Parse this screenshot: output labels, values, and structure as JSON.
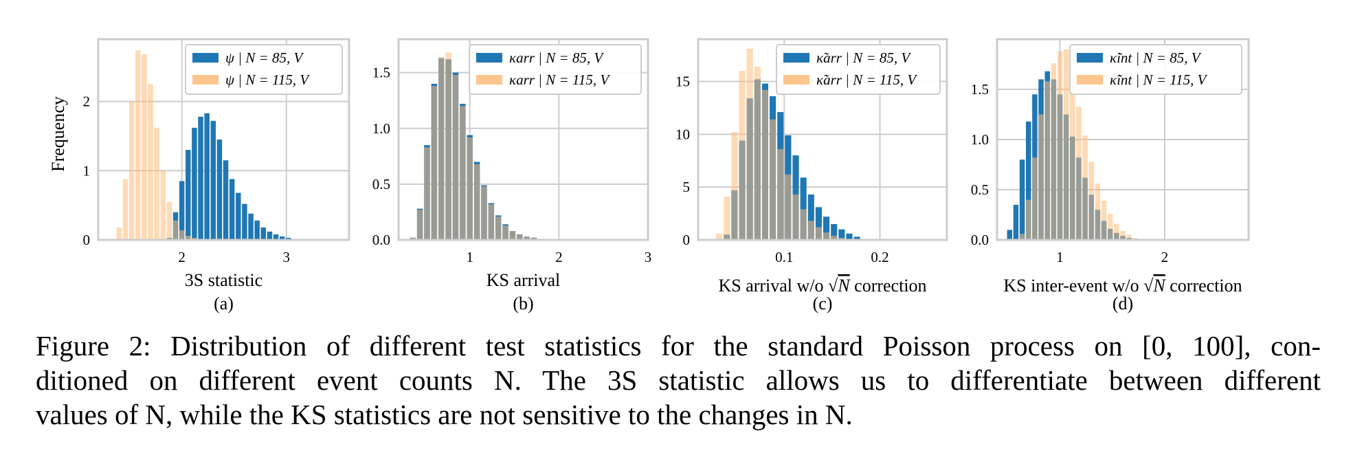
{
  "caption": {
    "lines": [
      "Figure 2: Distribution of different test statistics for the standard Poisson process on [0, 100], con-",
      "ditioned on different event counts N. The 3S statistic allows us to differentiate between different",
      "values of N, while the KS statistics are not sensitive to the changes in N."
    ]
  },
  "colors": {
    "series_a": "#1f77b4",
    "series_b": "#ffbb78",
    "overlap": "#8c6d4f",
    "grid": "#cccccc",
    "frame": "#cccccc"
  },
  "chart_data": [
    {
      "type": "bar",
      "subplot_label": "(a)",
      "xlabel": "3S statistic",
      "ylabel": "Frequency",
      "xlim": [
        1.2,
        3.6
      ],
      "ylim": [
        0,
        2.9
      ],
      "xticks": [
        2,
        3
      ],
      "xtick_labels": [
        "2",
        "3"
      ],
      "yticks": [
        0,
        1,
        2
      ],
      "ytick_labels": [
        "0",
        "1",
        "2"
      ],
      "bin_width": 0.06,
      "legend": [
        "ψ | N = 85, V",
        "ψ | N = 115, V"
      ],
      "series": [
        {
          "name": "ψ | N = 85, V",
          "x": [
            1.88,
            1.94,
            2.0,
            2.06,
            2.12,
            2.18,
            2.24,
            2.3,
            2.36,
            2.42,
            2.48,
            2.54,
            2.6,
            2.66,
            2.72,
            2.78,
            2.84,
            2.9,
            2.96,
            3.02
          ],
          "values": [
            0.03,
            0.4,
            0.85,
            1.3,
            1.62,
            1.78,
            1.83,
            1.72,
            1.45,
            1.15,
            0.88,
            0.68,
            0.52,
            0.38,
            0.28,
            0.18,
            0.12,
            0.08,
            0.05,
            0.03
          ]
        },
        {
          "name": "ψ | N = 115, V",
          "x": [
            1.4,
            1.46,
            1.52,
            1.58,
            1.64,
            1.7,
            1.76,
            1.82,
            1.88,
            1.94,
            2.0,
            2.06,
            2.12
          ],
          "values": [
            0.18,
            0.88,
            2.0,
            2.74,
            2.68,
            2.25,
            1.62,
            1.0,
            0.55,
            0.28,
            0.14,
            0.06,
            0.03
          ]
        }
      ]
    },
    {
      "type": "bar",
      "subplot_label": "(b)",
      "xlabel": "KS arrival",
      "ylabel": "",
      "xlim": [
        0.2,
        3.0
      ],
      "ylim": [
        0,
        1.8
      ],
      "xticks": [
        1,
        2,
        3
      ],
      "xtick_labels": [
        "1",
        "2",
        "3"
      ],
      "yticks": [
        0,
        0.5,
        1.0,
        1.5
      ],
      "ytick_labels": [
        "0.0",
        "0.5",
        "1.0",
        "1.5"
      ],
      "bin_width": 0.08,
      "legend": [
        "κarr | N = 85, V",
        "κarr | N = 115, V"
      ],
      "series": [
        {
          "name": "κarr | N = 85, V",
          "x": [
            0.36,
            0.44,
            0.52,
            0.6,
            0.68,
            0.76,
            0.84,
            0.92,
            1.0,
            1.08,
            1.16,
            1.24,
            1.32,
            1.4,
            1.48,
            1.56,
            1.64,
            1.72
          ],
          "values": [
            0.02,
            0.28,
            0.85,
            1.4,
            1.63,
            1.62,
            1.5,
            1.22,
            0.94,
            0.7,
            0.49,
            0.33,
            0.22,
            0.14,
            0.08,
            0.05,
            0.03,
            0.02
          ]
        },
        {
          "name": "κarr | N = 115, V",
          "x": [
            0.36,
            0.44,
            0.52,
            0.6,
            0.68,
            0.76,
            0.84,
            0.92,
            1.0,
            1.08,
            1.16,
            1.24,
            1.32,
            1.4,
            1.48,
            1.56,
            1.64,
            1.72
          ],
          "values": [
            0.02,
            0.27,
            0.83,
            1.38,
            1.64,
            1.68,
            1.48,
            1.2,
            0.92,
            0.68,
            0.48,
            0.32,
            0.21,
            0.13,
            0.08,
            0.05,
            0.03,
            0.02
          ]
        }
      ]
    },
    {
      "type": "bar",
      "subplot_label": "(c)",
      "xlabel": "KS arrival w/o √N correction",
      "ylabel": "",
      "xlim": [
        0.01,
        0.27
      ],
      "ylim": [
        0,
        19
      ],
      "xticks": [
        0.1,
        0.2
      ],
      "xtick_labels": [
        "0.1",
        "0.2"
      ],
      "yticks": [
        0,
        5,
        10,
        15
      ],
      "ytick_labels": [
        "0",
        "5",
        "10",
        "15"
      ],
      "bin_width": 0.008,
      "legend": [
        "κ̃arr | N = 85, V",
        "κ̃arr | N = 115, V"
      ],
      "series": [
        {
          "name": "κ̃arr | N = 85, V",
          "x": [
            0.04,
            0.048,
            0.056,
            0.064,
            0.072,
            0.08,
            0.088,
            0.096,
            0.104,
            0.112,
            0.12,
            0.128,
            0.136,
            0.144,
            0.152,
            0.16,
            0.168,
            0.176,
            0.184
          ],
          "values": [
            0.5,
            4.7,
            9.4,
            13.4,
            15.2,
            14.8,
            13.6,
            12.1,
            9.9,
            8.0,
            5.9,
            4.3,
            3.1,
            2.2,
            1.5,
            1.0,
            0.6,
            0.3,
            0.1
          ]
        },
        {
          "name": "κ̃arr | N = 115, V",
          "x": [
            0.032,
            0.04,
            0.048,
            0.056,
            0.064,
            0.072,
            0.08,
            0.088,
            0.096,
            0.104,
            0.112,
            0.12,
            0.128,
            0.136,
            0.144,
            0.152,
            0.16,
            0.168
          ],
          "values": [
            0.6,
            4.1,
            10.2,
            16.0,
            18.1,
            16.4,
            14.2,
            11.4,
            8.6,
            6.2,
            4.3,
            2.9,
            1.8,
            1.2,
            0.7,
            0.4,
            0.2,
            0.1
          ]
        }
      ]
    },
    {
      "type": "bar",
      "subplot_label": "(d)",
      "xlabel": "KS inter-event w/o √N correction",
      "ylabel": "",
      "xlim": [
        0.4,
        2.8
      ],
      "ylim": [
        0,
        2.0
      ],
      "xticks": [
        1,
        2
      ],
      "xtick_labels": [
        "1",
        "2"
      ],
      "yticks": [
        0,
        0.5,
        1.0,
        1.5
      ],
      "ytick_labels": [
        "0.0",
        "0.5",
        "1.0",
        "1.5"
      ],
      "bin_width": 0.06,
      "legend": [
        "κ̃int | N = 85, V",
        "κ̃int | N = 115, V"
      ],
      "series": [
        {
          "name": "κ̃int | N = 85, V",
          "x": [
            0.52,
            0.58,
            0.64,
            0.7,
            0.76,
            0.82,
            0.88,
            0.94,
            1.0,
            1.06,
            1.12,
            1.18,
            1.24,
            1.3,
            1.36,
            1.42,
            1.48,
            1.54,
            1.6,
            1.66,
            1.72
          ],
          "values": [
            0.1,
            0.35,
            0.8,
            1.18,
            1.45,
            1.6,
            1.68,
            1.6,
            1.45,
            1.25,
            1.03,
            0.82,
            0.62,
            0.45,
            0.3,
            0.19,
            0.11,
            0.07,
            0.04,
            0.02,
            0.01
          ]
        },
        {
          "name": "κ̃int | N = 115, V",
          "x": [
            0.64,
            0.7,
            0.76,
            0.82,
            0.88,
            0.94,
            1.0,
            1.06,
            1.12,
            1.18,
            1.24,
            1.3,
            1.36,
            1.42,
            1.48,
            1.54,
            1.6,
            1.66,
            1.72
          ],
          "values": [
            0.06,
            0.4,
            0.82,
            1.25,
            1.58,
            1.76,
            1.88,
            1.9,
            1.66,
            1.33,
            1.04,
            0.78,
            0.56,
            0.39,
            0.26,
            0.16,
            0.09,
            0.05,
            0.02
          ]
        }
      ]
    }
  ]
}
